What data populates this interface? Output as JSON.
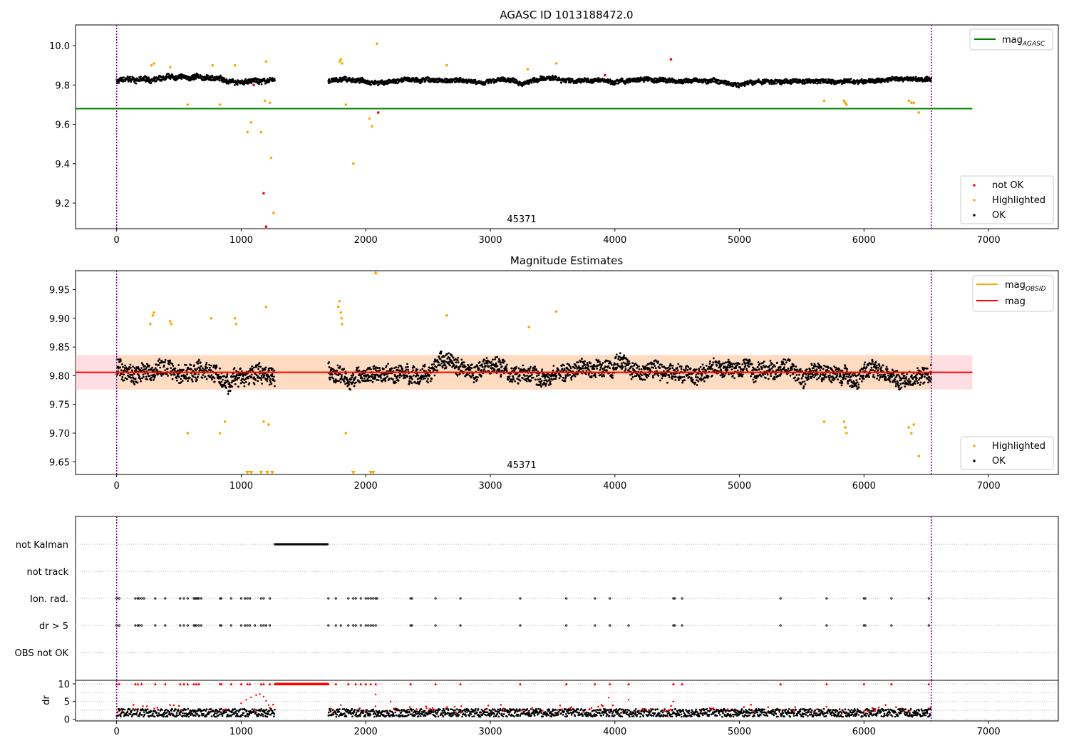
{
  "chart_data": [
    {
      "id": "top",
      "type": "scatter",
      "title": "AGASC ID 1013188472.0",
      "xlim": [
        -330,
        7560
      ],
      "ylim": [
        9.07,
        10.105
      ],
      "x_ticks": [
        0,
        1000,
        2000,
        3000,
        4000,
        5000,
        6000,
        7000
      ],
      "y_ticks": [
        9.2,
        9.4,
        9.6,
        9.8,
        10.0
      ],
      "y_tick_labels": [
        "9.2",
        "9.4",
        "9.6",
        "9.8",
        "10.0"
      ],
      "annotation": {
        "text": "45371",
        "x": 3300,
        "y": 9.12
      },
      "vlines": [
        0,
        6540
      ],
      "ok_segments": [
        {
          "x0": 0,
          "x1": 1270,
          "level": 9.82,
          "amp": 0.04
        },
        {
          "x0": 1700,
          "x1": 6540,
          "level": 9.82,
          "amp": 0.035
        }
      ],
      "mag_agasc": {
        "value": 9.68,
        "x0": -330,
        "x1": 6870,
        "color": "#008000"
      },
      "highlighted": [
        [
          280,
          9.9
        ],
        [
          300,
          9.91
        ],
        [
          430,
          9.89
        ],
        [
          570,
          9.7
        ],
        [
          770,
          9.9
        ],
        [
          830,
          9.7
        ],
        [
          950,
          9.9
        ],
        [
          1050,
          9.56
        ],
        [
          1080,
          9.61
        ],
        [
          1160,
          9.56
        ],
        [
          1190,
          9.72
        ],
        [
          1200,
          9.92
        ],
        [
          1230,
          9.71
        ],
        [
          1240,
          9.43
        ],
        [
          1260,
          9.15
        ],
        [
          1790,
          9.92
        ],
        [
          1800,
          9.93
        ],
        [
          1810,
          9.91
        ],
        [
          1840,
          9.7
        ],
        [
          1900,
          9.4
        ],
        [
          2030,
          9.63
        ],
        [
          2050,
          9.59
        ],
        [
          2090,
          10.01
        ],
        [
          2650,
          9.9
        ],
        [
          3300,
          9.88
        ],
        [
          3530,
          9.91
        ],
        [
          5680,
          9.72
        ],
        [
          5840,
          9.72
        ],
        [
          5850,
          9.71
        ],
        [
          5860,
          9.7
        ],
        [
          6360,
          9.72
        ],
        [
          6380,
          9.71
        ],
        [
          6400,
          9.71
        ],
        [
          6440,
          9.66
        ]
      ],
      "not_ok": [
        [
          1100,
          9.8
        ],
        [
          1180,
          9.25
        ],
        [
          1200,
          9.08
        ],
        [
          2100,
          9.66
        ],
        [
          3920,
          9.85
        ],
        [
          4450,
          9.93
        ]
      ],
      "legends": [
        {
          "position": "upper right",
          "entries": [
            {
              "label": "mag",
              "sub": "AGASC",
              "kind": "line",
              "color": "#008000"
            }
          ]
        },
        {
          "position": "lower right",
          "entries": [
            {
              "label": "not OK",
              "kind": "dot",
              "color": "#ff0000"
            },
            {
              "label": "Highlighted",
              "kind": "dot",
              "color": "#ffa500"
            },
            {
              "label": "OK",
              "kind": "dot",
              "color": "#000000"
            }
          ]
        }
      ]
    },
    {
      "id": "mid",
      "type": "scatter",
      "title": "Magnitude Estimates",
      "xlim": [
        -330,
        7560
      ],
      "ylim": [
        9.628,
        9.983
      ],
      "x_ticks": [
        0,
        1000,
        2000,
        3000,
        4000,
        5000,
        6000,
        7000
      ],
      "y_ticks": [
        9.65,
        9.7,
        9.75,
        9.8,
        9.85,
        9.9,
        9.95
      ],
      "y_tick_labels": [
        "9.65",
        "9.70",
        "9.75",
        "9.80",
        "9.85",
        "9.90",
        "9.95"
      ],
      "annotation": {
        "text": "45371",
        "x": 3300,
        "y": 9.641
      },
      "vlines": [
        0,
        6540
      ],
      "ok_segments": [
        {
          "x0": 0,
          "x1": 1270,
          "level": 9.81,
          "amp": 0.05
        },
        {
          "x0": 1700,
          "x1": 6540,
          "level": 9.81,
          "amp": 0.045
        }
      ],
      "mag": {
        "value": 9.806,
        "band": [
          9.776,
          9.836
        ],
        "x0": -330,
        "x1": 6870,
        "color": "#ff0000",
        "band_color": "#ffb6c1"
      },
      "mag_obsid": {
        "value": 9.806,
        "band": [
          9.776,
          9.836
        ],
        "x0": 0,
        "x1": 6540,
        "color": "#ffa500",
        "band_color": "#ffdab9"
      },
      "highlighted": [
        [
          270,
          9.89
        ],
        [
          290,
          9.905
        ],
        [
          300,
          9.91
        ],
        [
          430,
          9.895
        ],
        [
          440,
          9.89
        ],
        [
          570,
          9.7
        ],
        [
          760,
          9.9
        ],
        [
          830,
          9.7
        ],
        [
          870,
          9.72
        ],
        [
          950,
          9.9
        ],
        [
          960,
          9.89
        ],
        [
          1200,
          9.92
        ],
        [
          1220,
          9.715
        ],
        [
          1180,
          9.72
        ],
        [
          1780,
          9.92
        ],
        [
          1790,
          9.93
        ],
        [
          1800,
          9.91
        ],
        [
          1805,
          9.9
        ],
        [
          1810,
          9.89
        ],
        [
          1840,
          9.7
        ],
        [
          2650,
          9.905
        ],
        [
          3310,
          9.885
        ],
        [
          3530,
          9.912
        ],
        [
          5680,
          9.72
        ],
        [
          5840,
          9.72
        ],
        [
          5850,
          9.71
        ],
        [
          5860,
          9.7
        ],
        [
          6360,
          9.71
        ],
        [
          6380,
          9.7
        ],
        [
          6400,
          9.715
        ],
        [
          6440,
          9.66
        ]
      ],
      "clipped_low": [
        1050,
        1080,
        1160,
        1210,
        1250,
        1900,
        2040,
        2060
      ],
      "clipped_high": [
        2080
      ],
      "legends": [
        {
          "position": "upper right",
          "entries": [
            {
              "label": "mag",
              "sub": "OBSID",
              "kind": "line",
              "color": "#ffa500"
            },
            {
              "label": "mag",
              "kind": "line",
              "color": "#ff0000"
            }
          ]
        },
        {
          "position": "lower right",
          "entries": [
            {
              "label": "Highlighted",
              "kind": "dot",
              "color": "#ffa500"
            },
            {
              "label": "OK",
              "kind": "dot",
              "color": "#000000"
            }
          ]
        }
      ]
    },
    {
      "id": "flags",
      "type": "scatter",
      "xlim": [
        -330,
        7560
      ],
      "categories": [
        "not Kalman",
        "not track",
        "Ion. rad.",
        "dr > 5",
        "OBS not OK"
      ],
      "not_kalman_range": [
        1270,
        1700
      ],
      "ion_rad_x": [
        0,
        20,
        150,
        170,
        180,
        200,
        220,
        310,
        390,
        510,
        540,
        570,
        620,
        630,
        640,
        650,
        660,
        680,
        830,
        840,
        920,
        1000,
        1030,
        1050,
        1070,
        1160,
        1180,
        1230,
        1700,
        1760,
        1860,
        1900,
        1920,
        1960,
        2000,
        2020,
        2040,
        2060,
        2080,
        2090,
        2360,
        2370,
        2560,
        2760,
        3240,
        3610,
        3840,
        3960,
        4470,
        4480,
        4540,
        5330,
        5700,
        6000,
        6010,
        6220,
        6520
      ],
      "dr5_x": [
        0,
        20,
        150,
        170,
        180,
        200,
        310,
        390,
        510,
        540,
        570,
        620,
        630,
        640,
        660,
        680,
        830,
        840,
        920,
        1000,
        1030,
        1050,
        1070,
        1110,
        1160,
        1180,
        1200,
        1230,
        1700,
        1760,
        1800,
        1860,
        1900,
        1920,
        1960,
        2000,
        2020,
        2040,
        2060,
        2080,
        2360,
        2370,
        2560,
        2760,
        3240,
        3610,
        3840,
        3960,
        4110,
        4470,
        4480,
        4540,
        5330,
        5700,
        6000,
        6010,
        6220,
        6520
      ],
      "vlines": [
        0,
        6540
      ]
    },
    {
      "id": "dr",
      "type": "scatter",
      "xlim": [
        -330,
        7560
      ],
      "ylim": [
        -0.5,
        11
      ],
      "ylabel": "dr",
      "y_ticks": [
        0,
        5,
        10
      ],
      "x_ticks": [
        0,
        1000,
        2000,
        3000,
        4000,
        5000,
        6000,
        7000
      ],
      "ok_segments": [
        {
          "x0": 0,
          "x1": 1270,
          "level": 1.8,
          "amp": 0.8
        },
        {
          "x0": 1700,
          "x1": 6540,
          "level": 1.8,
          "amp": 0.8
        }
      ],
      "capped_range": [
        1270,
        1700
      ],
      "capped_x": [
        0,
        20,
        150,
        170,
        200,
        310,
        390,
        510,
        540,
        570,
        620,
        640,
        660,
        830,
        840,
        920,
        1000,
        1050,
        1070,
        1160,
        1180,
        1230,
        1760,
        1860,
        1920,
        1960,
        2000,
        2040,
        2080,
        2360,
        2560,
        2760,
        3240,
        3610,
        3840,
        3960,
        4110,
        4470,
        4540,
        5330,
        5700,
        6000,
        6220,
        6520
      ],
      "red_points": [
        [
          1000,
          4.5
        ],
        [
          1040,
          5.5
        ],
        [
          1080,
          6.2
        ],
        [
          1120,
          6.8
        ],
        [
          1150,
          7.1
        ],
        [
          1180,
          6.4
        ],
        [
          1200,
          5.2
        ],
        [
          1220,
          4.0
        ],
        [
          2080,
          7.0
        ],
        [
          2200,
          5.0
        ],
        [
          3950,
          6.1
        ],
        [
          4110,
          5.5
        ],
        [
          4470,
          5.0
        ],
        [
          1800,
          4.0
        ]
      ],
      "vlines": [
        0,
        6540
      ]
    }
  ]
}
